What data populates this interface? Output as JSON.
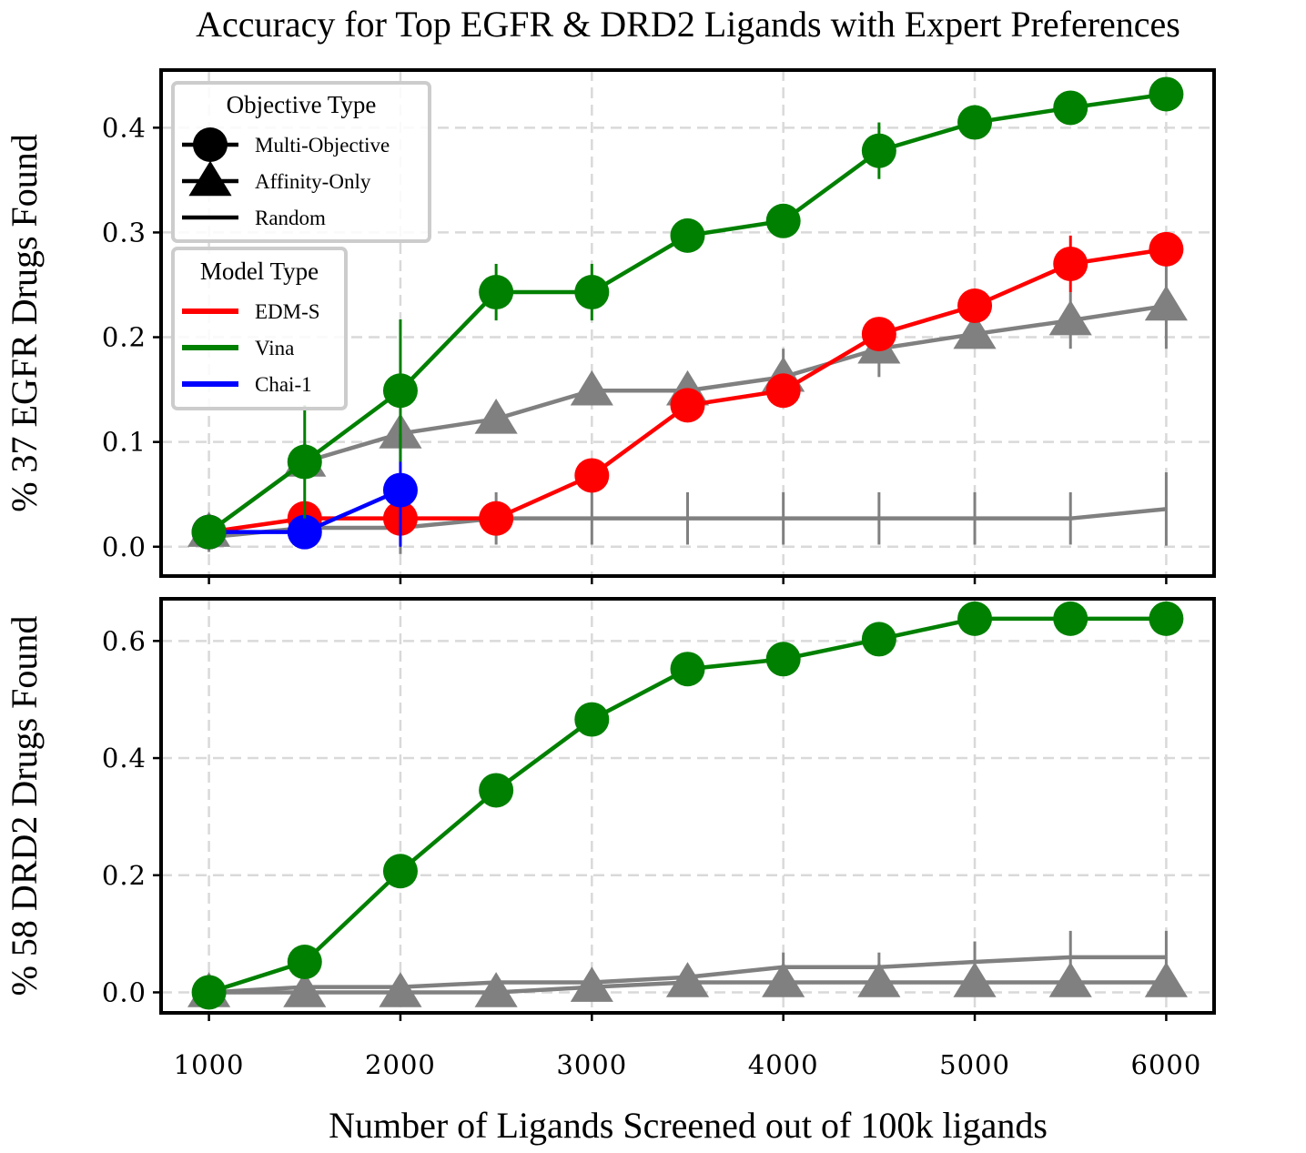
{
  "chart_data": {
    "type": "line",
    "title": "Accuracy for Top EGFR & DRD2 Ligands with Expert Preferences",
    "xlabel": "Number of Ligands Screened out of 100k ligands",
    "x_ticks": [
      1000,
      2000,
      3000,
      4000,
      5000,
      6000
    ],
    "xlim": [
      750,
      6250
    ],
    "grid": true,
    "legend_objective": {
      "title": "Objective Type",
      "placement": "top-left",
      "entries": [
        {
          "label": "Multi-Objective",
          "marker": "circle"
        },
        {
          "label": "Affinity-Only",
          "marker": "triangle"
        },
        {
          "label": "Random",
          "marker": "none"
        }
      ]
    },
    "legend_model": {
      "title": "Model Type",
      "placement": "top-left",
      "entries": [
        {
          "label": "EDM-S",
          "color": "#ff0000"
        },
        {
          "label": "Vina",
          "color": "#008000"
        },
        {
          "label": "Chai-1",
          "color": "#0000ff"
        }
      ]
    },
    "panels": [
      {
        "ylabel": "% 37 EGFR Drugs Found",
        "ylim": [
          -0.028,
          0.455
        ],
        "y_ticks": [
          0.0,
          0.1,
          0.2,
          0.3,
          0.4
        ],
        "y_tick_labels": [
          "0.0",
          "0.1",
          "0.2",
          "0.3",
          "0.4"
        ],
        "series": [
          {
            "model": "Random",
            "objective": "Random",
            "color": "#808080",
            "marker": "none",
            "x": [
              1000,
              1500,
              2000,
              2500,
              3000,
              3500,
              4000,
              4500,
              5000,
              5500,
              6000
            ],
            "y": [
              0.009,
              0.018,
              0.018,
              0.027,
              0.027,
              0.027,
              0.027,
              0.027,
              0.027,
              0.027,
              0.036
            ],
            "err": [
              0.014,
              0.018,
              0.025,
              0.025,
              0.025,
              0.025,
              0.025,
              0.025,
              0.025,
              0.025,
              0.035
            ]
          },
          {
            "model": "Random",
            "objective": "Affinity-Only",
            "color": "#808080",
            "marker": "triangle",
            "x": [
              1000,
              1500,
              2000,
              2500,
              3000,
              3500,
              4000,
              4500,
              5000,
              5500,
              6000
            ],
            "y": [
              0.014,
              0.081,
              0.108,
              0.122,
              0.149,
              0.149,
              0.162,
              0.189,
              0.203,
              0.216,
              0.23
            ],
            "err": [
              0,
              0,
              0,
              0,
              0,
              0,
              0.027,
              0.027,
              0,
              0.027,
              0.041
            ]
          },
          {
            "model": "EDM-S",
            "objective": "Multi-Objective",
            "color": "#ff0000",
            "marker": "circle",
            "x": [
              1000,
              1500,
              2000,
              2500,
              3000,
              3500,
              4000,
              4500,
              5000,
              5500,
              6000
            ],
            "y": [
              0.014,
              0.027,
              0.027,
              0.027,
              0.068,
              0.135,
              0.149,
              0.203,
              0.23,
              0.27,
              0.284
            ],
            "err": [
              0,
              0,
              0,
              0,
              0,
              0,
              0,
              0,
              0,
              0.027,
              0
            ]
          },
          {
            "model": "Chai-1",
            "objective": "Multi-Objective",
            "color": "#0000ff",
            "marker": "circle",
            "x": [
              1000,
              1500,
              2000
            ],
            "y": [
              0.014,
              0.014,
              0.054
            ],
            "err": [
              0,
              0,
              0.054
            ]
          },
          {
            "model": "Vina",
            "objective": "Multi-Objective",
            "color": "#008000",
            "marker": "circle",
            "x": [
              1000,
              1500,
              2000,
              2500,
              3000,
              3500,
              4000,
              4500,
              5000,
              5500,
              6000
            ],
            "y": [
              0.014,
              0.081,
              0.149,
              0.243,
              0.243,
              0.297,
              0.311,
              0.378,
              0.405,
              0.419,
              0.432
            ],
            "err": [
              0,
              0.054,
              0.068,
              0.027,
              0.027,
              0,
              0,
              0.027,
              0,
              0,
              0
            ]
          }
        ]
      },
      {
        "ylabel": "% 58 DRD2 Drugs Found",
        "ylim": [
          -0.035,
          0.672
        ],
        "y_ticks": [
          0.0,
          0.2,
          0.4,
          0.6
        ],
        "y_tick_labels": [
          "0.0",
          "0.2",
          "0.4",
          "0.6"
        ],
        "series": [
          {
            "model": "Random",
            "objective": "Random",
            "color": "#808080",
            "marker": "none",
            "x": [
              1000,
              1500,
              2000,
              2500,
              3000,
              3500,
              4000,
              4500,
              5000,
              5500,
              6000
            ],
            "y": [
              0.0,
              0.009,
              0.009,
              0.017,
              0.017,
              0.026,
              0.043,
              0.043,
              0.052,
              0.06,
              0.06
            ],
            "err": [
              0,
              0,
              0,
              0,
              0,
              0,
              0.025,
              0.025,
              0.035,
              0.045,
              0.045
            ]
          },
          {
            "model": "Random",
            "objective": "Affinity-Only",
            "color": "#808080",
            "marker": "triangle",
            "x": [
              1000,
              1500,
              2000,
              2500,
              3000,
              3500,
              4000,
              4500,
              5000,
              5500,
              6000
            ],
            "y": [
              0.0,
              0.0,
              0.0,
              0.0,
              0.009,
              0.017,
              0.017,
              0.017,
              0.017,
              0.017,
              0.017
            ],
            "err": [
              0,
              0,
              0,
              0,
              0,
              0,
              0,
              0,
              0,
              0,
              0
            ]
          },
          {
            "model": "Vina",
            "objective": "Multi-Objective",
            "color": "#008000",
            "marker": "circle",
            "x": [
              1000,
              1500,
              2000,
              2500,
              3000,
              3500,
              4000,
              4500,
              5000,
              5500,
              6000
            ],
            "y": [
              0.0,
              0.052,
              0.207,
              0.345,
              0.466,
              0.552,
              0.569,
              0.603,
              0.638,
              0.638,
              0.638
            ],
            "err": [
              0,
              0,
              0,
              0,
              0,
              0,
              0,
              0,
              0,
              0,
              0
            ]
          }
        ]
      }
    ]
  }
}
